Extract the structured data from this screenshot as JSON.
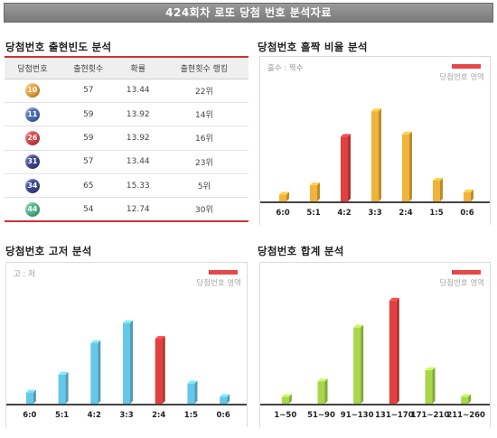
{
  "banner": "424회차 로또 당첨 번호 분석자료",
  "sections": {
    "frequency": "당첨번호 출현빈도 분석",
    "odd_even": "당첨번호 홀짝 비율 분석",
    "high_low": "당첨번호 고저 분석",
    "sum": "당첨번호 합계 분석"
  },
  "table": {
    "headers": [
      "당첨번호",
      "출현횟수",
      "확률",
      "출현횟수 랭킹"
    ],
    "rows": [
      {
        "number": "10",
        "count": "57",
        "prob": "13.44",
        "rank": "22위",
        "color": "#f2a33a"
      },
      {
        "number": "11",
        "count": "59",
        "prob": "13.92",
        "rank": "14위",
        "color": "#4f6fb8"
      },
      {
        "number": "26",
        "count": "59",
        "prob": "13.92",
        "rank": "16위",
        "color": "#d94545"
      },
      {
        "number": "31",
        "count": "57",
        "prob": "13.44",
        "rank": "23위",
        "color": "#3c4790"
      },
      {
        "number": "34",
        "count": "65",
        "prob": "15.33",
        "rank": "5위",
        "color": "#3c4790"
      },
      {
        "number": "44",
        "count": "54",
        "prob": "12.74",
        "rank": "30위",
        "color": "#4db98a"
      }
    ]
  },
  "legend_text": "당첨번호 영역",
  "chart_data": [
    {
      "id": "odd_even",
      "type": "bar",
      "label": "홀수 : 짝수",
      "categories": [
        "6:0",
        "5:1",
        "4:2",
        "3:3",
        "2:4",
        "1:5",
        "0:6"
      ],
      "values": [
        1.5,
        3.5,
        14,
        19.5,
        14.5,
        4.5,
        2
      ],
      "highlight": "4:2",
      "color": "#f0b43c",
      "highlight_color": "#e2403f",
      "ylim": [
        0,
        25
      ]
    },
    {
      "id": "high_low",
      "type": "bar",
      "label": "고 : 저",
      "categories": [
        "6:0",
        "5:1",
        "4:2",
        "3:3",
        "2:4",
        "1:5",
        "0:6"
      ],
      "values": [
        2.5,
        6.5,
        13.5,
        18,
        14.5,
        4.5,
        1.5
      ],
      "highlight": "2:4",
      "color": "#66c8e8",
      "highlight_color": "#e2403f",
      "ylim": [
        0,
        25
      ]
    },
    {
      "id": "sum",
      "type": "bar",
      "label": "",
      "categories": [
        "1~50",
        "51~90",
        "91~130",
        "131~170",
        "171~210",
        "211~260"
      ],
      "values": [
        1.5,
        5,
        17,
        23,
        7.5,
        1.5
      ],
      "highlight": "131~170",
      "color": "#a9d64b",
      "highlight_color": "#e2403f",
      "ylim": [
        0,
        25
      ]
    }
  ]
}
